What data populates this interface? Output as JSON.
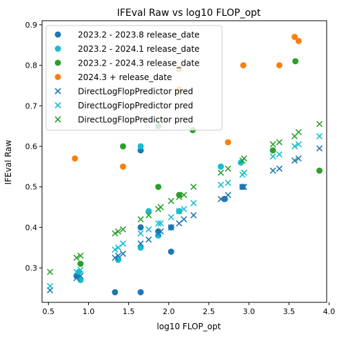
{
  "chart_data": {
    "type": "scatter",
    "title": "IFEval Raw vs log10 FLOP_opt",
    "xlabel": "log10 FLOP_opt",
    "ylabel": "IFEval Raw",
    "xlim": [
      0.42,
      3.97
    ],
    "ylim": [
      0.215,
      0.91
    ],
    "xticks": [
      "0.5",
      "1.0",
      "1.5",
      "2.0",
      "2.5",
      "3.0",
      "3.5",
      "4.0"
    ],
    "xtick_values": [
      0.5,
      1.0,
      1.5,
      2.0,
      2.5,
      3.0,
      3.5,
      4.0
    ],
    "yticks": [
      "0.3",
      "0.4",
      "0.5",
      "0.6",
      "0.7",
      "0.8",
      "0.9"
    ],
    "ytick_values": [
      0.3,
      0.4,
      0.5,
      0.6,
      0.7,
      0.8,
      0.9
    ],
    "grid": false,
    "legend_position": "top-left",
    "series": [
      {
        "name": "2023.2 - 2023.8 release_date",
        "marker": "circle",
        "color": "#1f77b4",
        "points": [
          [
            0.85,
            0.28
          ],
          [
            1.33,
            0.24
          ],
          [
            1.65,
            0.24
          ],
          [
            1.65,
            0.4
          ],
          [
            1.65,
            0.59
          ],
          [
            1.87,
            0.39
          ],
          [
            2.03,
            0.34
          ],
          [
            2.03,
            0.4
          ],
          [
            2.7,
            0.47
          ],
          [
            2.92,
            0.5
          ]
        ]
      },
      {
        "name": "2023.2 - 2024.1 release_date",
        "marker": "circle",
        "color": "#17becf",
        "points": [
          [
            0.88,
            0.29
          ],
          [
            0.9,
            0.27
          ],
          [
            1.37,
            0.32
          ],
          [
            1.65,
            0.35
          ],
          [
            1.65,
            0.6
          ],
          [
            1.75,
            0.44
          ],
          [
            1.87,
            0.38
          ],
          [
            2.13,
            0.44
          ],
          [
            2.65,
            0.55
          ],
          [
            2.9,
            0.56
          ]
        ]
      },
      {
        "name": "2023.2 - 2024.3 release_date",
        "marker": "circle",
        "color": "#2ca02c",
        "points": [
          [
            0.9,
            0.31
          ],
          [
            1.43,
            0.6
          ],
          [
            1.87,
            0.5
          ],
          [
            2.13,
            0.48
          ],
          [
            2.3,
            0.64
          ],
          [
            3.3,
            0.59
          ],
          [
            3.58,
            0.81
          ],
          [
            3.88,
            0.54
          ],
          [
            1.87,
            0.65
          ]
        ]
      },
      {
        "name": "2024.3 + release_date",
        "marker": "circle",
        "color": "#ff7f0e",
        "points": [
          [
            0.83,
            0.57
          ],
          [
            1.43,
            0.55
          ],
          [
            2.13,
            0.74
          ],
          [
            2.13,
            0.79
          ],
          [
            2.74,
            0.61
          ],
          [
            2.93,
            0.8
          ],
          [
            3.38,
            0.8
          ],
          [
            3.57,
            0.87
          ],
          [
            3.62,
            0.86
          ]
        ]
      },
      {
        "name": "DirectLogFlopPredictor pred",
        "marker": "x",
        "color": "#1f77b4",
        "points": [
          [
            0.52,
            0.245
          ],
          [
            0.85,
            0.275
          ],
          [
            0.9,
            0.28
          ],
          [
            1.33,
            0.325
          ],
          [
            1.37,
            0.33
          ],
          [
            1.43,
            0.335
          ],
          [
            1.65,
            0.36
          ],
          [
            1.75,
            0.37
          ],
          [
            1.87,
            0.385
          ],
          [
            1.9,
            0.39
          ],
          [
            2.03,
            0.4
          ],
          [
            2.13,
            0.41
          ],
          [
            2.19,
            0.42
          ],
          [
            2.31,
            0.43
          ],
          [
            2.65,
            0.47
          ],
          [
            2.74,
            0.48
          ],
          [
            2.92,
            0.5
          ],
          [
            2.94,
            0.5
          ],
          [
            3.3,
            0.54
          ],
          [
            3.38,
            0.545
          ],
          [
            3.57,
            0.565
          ],
          [
            3.62,
            0.57
          ],
          [
            3.88,
            0.595
          ]
        ]
      },
      {
        "name": "DirectLogFlopPredictor pred",
        "marker": "x",
        "color": "#17becf",
        "points": [
          [
            0.52,
            0.255
          ],
          [
            0.85,
            0.29
          ],
          [
            0.9,
            0.295
          ],
          [
            1.33,
            0.345
          ],
          [
            1.37,
            0.35
          ],
          [
            1.43,
            0.36
          ],
          [
            1.65,
            0.385
          ],
          [
            1.75,
            0.395
          ],
          [
            1.87,
            0.41
          ],
          [
            1.9,
            0.41
          ],
          [
            2.03,
            0.425
          ],
          [
            2.13,
            0.44
          ],
          [
            2.19,
            0.445
          ],
          [
            2.31,
            0.46
          ],
          [
            2.65,
            0.505
          ],
          [
            2.74,
            0.51
          ],
          [
            2.92,
            0.53
          ],
          [
            2.94,
            0.535
          ],
          [
            3.3,
            0.575
          ],
          [
            3.38,
            0.58
          ],
          [
            3.57,
            0.6
          ],
          [
            3.62,
            0.605
          ],
          [
            3.88,
            0.625
          ]
        ]
      },
      {
        "name": "DirectLogFlopPredictor pred",
        "marker": "x",
        "color": "#2ca02c",
        "points": [
          [
            0.52,
            0.29
          ],
          [
            0.85,
            0.325
          ],
          [
            0.9,
            0.33
          ],
          [
            1.33,
            0.385
          ],
          [
            1.37,
            0.39
          ],
          [
            1.43,
            0.395
          ],
          [
            1.65,
            0.42
          ],
          [
            1.75,
            0.43
          ],
          [
            1.87,
            0.445
          ],
          [
            1.9,
            0.45
          ],
          [
            2.03,
            0.465
          ],
          [
            2.13,
            0.475
          ],
          [
            2.19,
            0.48
          ],
          [
            2.31,
            0.5
          ],
          [
            2.65,
            0.535
          ],
          [
            2.74,
            0.545
          ],
          [
            2.92,
            0.565
          ],
          [
            2.94,
            0.57
          ],
          [
            3.3,
            0.605
          ],
          [
            3.38,
            0.61
          ],
          [
            3.57,
            0.625
          ],
          [
            3.62,
            0.635
          ],
          [
            3.88,
            0.655
          ]
        ]
      }
    ]
  }
}
